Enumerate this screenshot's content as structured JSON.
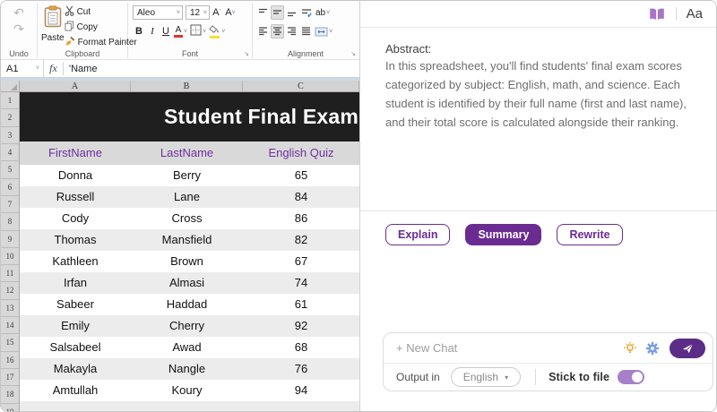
{
  "colors": {
    "accent": "#6a2c91",
    "send": "#5b2d86",
    "title_bg": "#1f1f1f",
    "header_text": "#7030a0",
    "toggle": "#a87fc9",
    "bulb": "#f0a028",
    "gear": "#7b9fe0",
    "book": "#a874c8"
  },
  "icons": {
    "undo": "↶",
    "redo": "↷",
    "launcher": "↘",
    "caret": "˅",
    "caret_up": "ˆ",
    "caret_filled": "▾"
  },
  "ribbon": {
    "undo_group": "Undo",
    "clipboard_group": "Clipboard",
    "font_group": "Font",
    "alignment_group": "Alignment",
    "paste": "Paste",
    "cut": "Cut",
    "copy": "Copy",
    "format_painter": "Format Painter",
    "font_name": "Aleo",
    "font_size": "12",
    "grow_font": "A",
    "shrink_font": "A",
    "bold": "B",
    "italic": "I",
    "underline": "U",
    "font_color": "A",
    "orientation": "ab"
  },
  "formula_bar": {
    "cell_ref": "A1",
    "fx": "fx",
    "formula": "'Name"
  },
  "sheet": {
    "columns": [
      "A",
      "B",
      "C"
    ],
    "row_numbers": [
      1,
      2,
      3,
      4,
      5,
      6,
      7,
      8,
      9,
      10,
      11,
      12,
      13,
      14,
      15,
      16,
      17,
      18,
      19
    ],
    "title": "Student Final Exam",
    "headers": [
      "FirstName",
      "LastName",
      "English Quiz"
    ],
    "rows": [
      [
        "Donna",
        "Berry",
        "65"
      ],
      [
        "Russell",
        "Lane",
        "84"
      ],
      [
        "Cody",
        "Cross",
        "86"
      ],
      [
        "Thomas",
        "Mansfield",
        "82"
      ],
      [
        "Kathleen",
        "Brown",
        "67"
      ],
      [
        "Irfan",
        "Almasi",
        "74"
      ],
      [
        "Sabeer",
        "Haddad",
        "61"
      ],
      [
        "Emily",
        "Cherry",
        "92"
      ],
      [
        "Salsabeel",
        "Awad",
        "68"
      ],
      [
        "Makayla",
        "Nangle",
        "76"
      ],
      [
        "Amtullah",
        "Koury",
        "94"
      ]
    ]
  },
  "panel": {
    "toolbar": {
      "font_label": "Aa"
    },
    "abstract_title": "Abstract:",
    "abstract_body": "In this spreadsheet, you'll find students' final exam scores categorized by subject: English, math, and science. Each student is identified by their full name (first and last name), and their total score is calculated alongside their ranking.",
    "actions": [
      {
        "label": "Explain",
        "active": false
      },
      {
        "label": "Summary",
        "active": true
      },
      {
        "label": "Rewrite",
        "active": false
      }
    ],
    "chat": {
      "placeholder": "+ New Chat",
      "output_in": "Output in",
      "language": "English",
      "stick_to_file": "Stick to file",
      "toggle_on": true
    }
  }
}
